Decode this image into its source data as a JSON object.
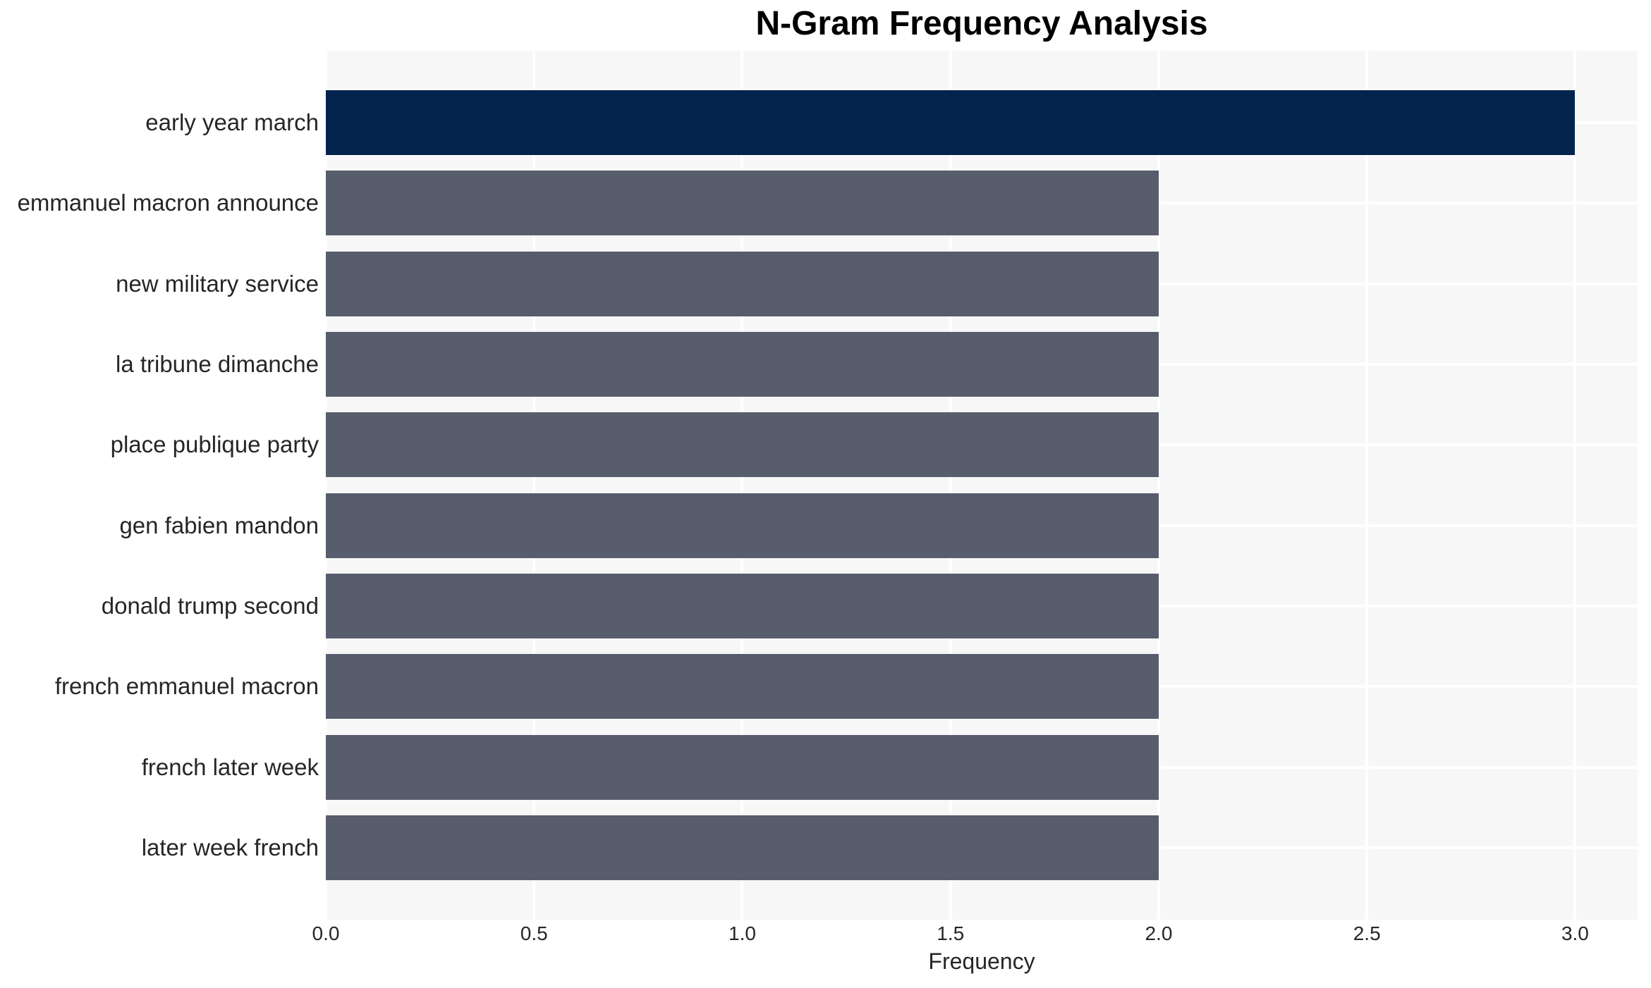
{
  "chart_data": {
    "type": "bar",
    "orientation": "horizontal",
    "title": "N-Gram Frequency Analysis",
    "xlabel": "Frequency",
    "ylabel": "",
    "categories": [
      "early year march",
      "emmanuel macron announce",
      "new military service",
      "la tribune dimanche",
      "place publique party",
      "gen fabien mandon",
      "donald trump second",
      "french emmanuel macron",
      "french later week",
      "later week french"
    ],
    "values": [
      3,
      2,
      2,
      2,
      2,
      2,
      2,
      2,
      2,
      2
    ],
    "bar_colors": [
      "#02234E",
      "#575D6C",
      "#575D6C",
      "#575D6C",
      "#575D6C",
      "#575D6C",
      "#575D6C",
      "#575D6C",
      "#575D6C",
      "#575D6C"
    ],
    "xlim": [
      0,
      3.15
    ],
    "xticks": [
      0,
      0.5,
      1,
      1.5,
      2,
      2.5,
      3
    ],
    "xtick_labels": [
      "0.0",
      "0.5",
      "1.0",
      "1.5",
      "2.0",
      "2.5",
      "3.0"
    ],
    "grid": true,
    "legend": false,
    "colors": {
      "highlight_bar": "#02234E",
      "default_bar": "#575D6C",
      "plot_background": "#F7F7F7",
      "gridline": "#FFFFFF",
      "tick_text": "#262626",
      "title_text": "#000000",
      "page_background": "#FFFFFF"
    }
  }
}
